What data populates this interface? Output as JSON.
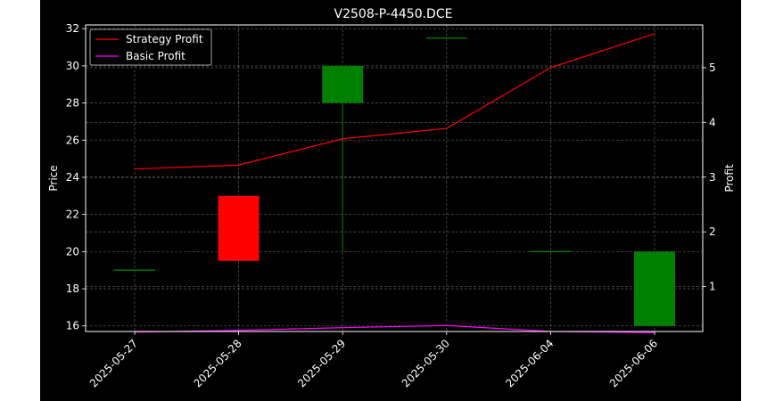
{
  "chart_data": {
    "type": "candlestick",
    "title": "V2508-P-4450.DCE",
    "xlabel": "",
    "ylabel": "Price",
    "y2label": "Profit",
    "categories": [
      "2025-05-27",
      "2025-05-28",
      "2025-05-29",
      "2025-05-30",
      "2025-06-04",
      "2025-06-06"
    ],
    "candles": [
      {
        "open": 19.0,
        "high": 19.0,
        "low": 19.0,
        "close": 19.0
      },
      {
        "open": 23.0,
        "high": 23.0,
        "low": 19.5,
        "close": 19.5
      },
      {
        "open": 28.0,
        "high": 30.0,
        "low": 20.0,
        "close": 30.0
      },
      {
        "open": 31.5,
        "high": 31.5,
        "low": 31.5,
        "close": 31.5
      },
      {
        "open": 20.0,
        "high": 20.0,
        "low": 20.0,
        "close": 20.0
      },
      {
        "open": 16.0,
        "high": 20.0,
        "low": 16.0,
        "close": 20.0
      }
    ],
    "ylim": [
      15.7,
      32.2
    ],
    "yticks": [
      16,
      18,
      20,
      22,
      24,
      26,
      28,
      30,
      32
    ],
    "y2lim": [
      0.18,
      5.78
    ],
    "y2ticks": [
      1,
      2,
      3,
      4,
      5
    ],
    "series": [
      {
        "name": "Strategy Profit",
        "axis": "right",
        "color": "#ff0000",
        "values": [
          3.15,
          3.22,
          3.7,
          3.89,
          5.0,
          5.62
        ]
      },
      {
        "name": "Basic Profit",
        "axis": "right",
        "color": "#ff00ff",
        "values": [
          0.17,
          0.2,
          0.25,
          0.29,
          0.18,
          0.16
        ]
      }
    ],
    "up_color": "#008000",
    "down_color": "#ff0000",
    "grid": true,
    "legend": "top-left"
  }
}
